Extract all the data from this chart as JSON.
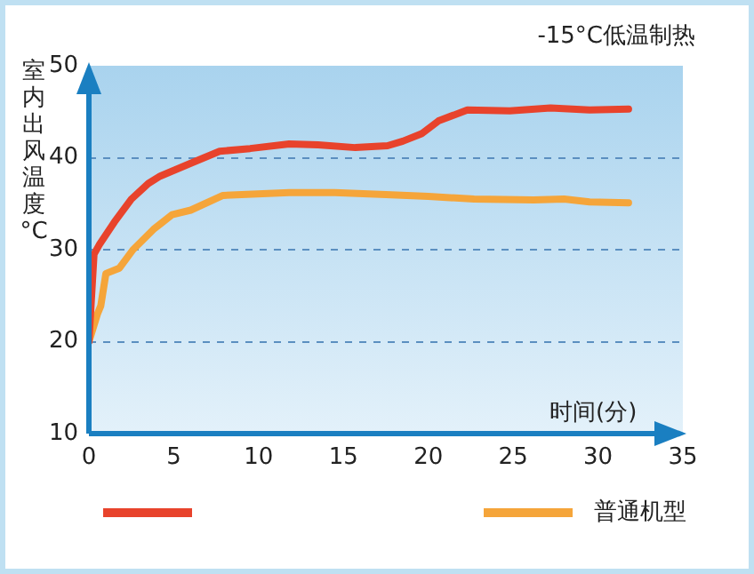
{
  "chart_data": {
    "type": "line",
    "title": "-15°C低温制热",
    "xlabel": "时间(分)",
    "ylabel": "室内出风温度°C",
    "xlim": [
      0,
      35
    ],
    "xticks": [
      0,
      5,
      10,
      15,
      20,
      25,
      30,
      35
    ],
    "ylim": [
      10,
      50
    ],
    "yticks": [
      10,
      20,
      30,
      40,
      50
    ],
    "grid": "y",
    "legend": "bottom",
    "marker": "none",
    "line_style": "solid",
    "series": [
      {
        "color": "#e8432c",
        "x": [
          0,
          0.3,
          0.6,
          1.5,
          2.5,
          3.5,
          4.2,
          6,
          7.7,
          9.5,
          11.8,
          13.5,
          15.7,
          17.6,
          18.5,
          19.6,
          20.6,
          22.3,
          24.8,
          27.2,
          29.5,
          31.8
        ],
        "values": [
          20,
          29.5,
          30.5,
          33,
          35.5,
          37.2,
          38,
          39.4,
          40.7,
          41,
          41.5,
          41.4,
          41.1,
          41.3,
          41.8,
          42.6,
          44,
          45.2,
          45.1,
          45.4,
          45.2,
          45.3
        ]
      },
      {
        "name": "普通机型",
        "color": "#f5a53a",
        "x": [
          0,
          0.5,
          0.7,
          1,
          1.8,
          2.6,
          3.8,
          4.9,
          6,
          7.9,
          11.8,
          14.5,
          17.5,
          20,
          22.7,
          26.2,
          28,
          29.5,
          31.8
        ],
        "values": [
          20,
          23,
          23.9,
          27.4,
          28,
          30,
          32.2,
          33.8,
          34.3,
          35.9,
          36.2,
          36.2,
          36,
          35.8,
          35.5,
          35.4,
          35.5,
          35.2,
          35.1
        ]
      }
    ]
  }
}
